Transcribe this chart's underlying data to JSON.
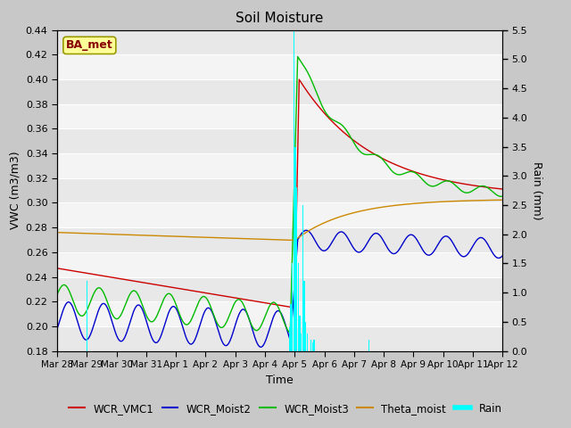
{
  "title": "Soil Moisture",
  "ylabel_left": "VWC (m3/m3)",
  "ylabel_right": "Rain (mm)",
  "xlabel": "Time",
  "station_label": "BA_met",
  "ylim_left": [
    0.18,
    0.44
  ],
  "ylim_right": [
    0.0,
    5.5
  ],
  "yticks_left": [
    0.18,
    0.2,
    0.22,
    0.24,
    0.26,
    0.28,
    0.3,
    0.32,
    0.34,
    0.36,
    0.38,
    0.4,
    0.42,
    0.44
  ],
  "yticks_right": [
    0.0,
    0.5,
    1.0,
    1.5,
    2.0,
    2.5,
    3.0,
    3.5,
    4.0,
    4.5,
    5.0,
    5.5
  ],
  "fig_bg": "#c8c8c8",
  "plot_bg_light": "#f0f0f0",
  "plot_bg_dark": "#dcdcdc",
  "legend_colors": [
    "#cc0000",
    "#0000cc",
    "#00cc00",
    "#cc8800",
    "#00cccc"
  ],
  "legend_labels": [
    "WCR_VMC1",
    "WCR_Moist2",
    "WCR_Moist3",
    "Theta_moist",
    "Rain"
  ],
  "xtick_labels": [
    "Mar 28",
    "Mar 29",
    "Mar 30",
    "Mar 31",
    "Apr 1",
    "Apr 2",
    "Apr 3",
    "Apr 4",
    "Apr 5",
    "Apr 6",
    "Apr 7",
    "Apr 8",
    "Apr 9",
    "Apr 10",
    "Apr 11",
    "Apr 12"
  ]
}
